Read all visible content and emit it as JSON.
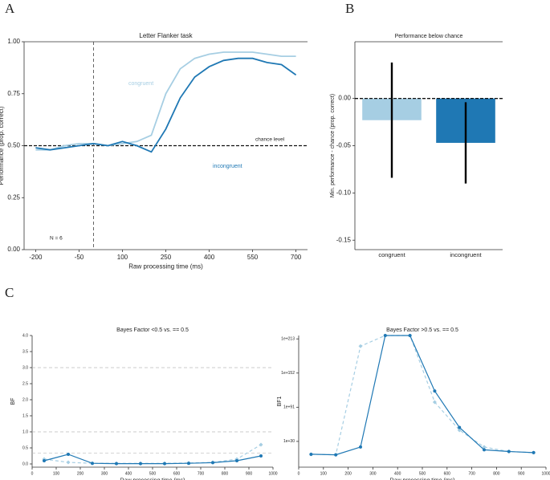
{
  "panel_labels": [
    "A",
    "B",
    "C"
  ],
  "chart_data": [
    {
      "type": "line",
      "title": "Letter Flanker task",
      "x_label": "Raw processing time (ms)",
      "y_label": "Performance (prop. correct)",
      "x": [
        -200,
        -150,
        -100,
        -50,
        0,
        50,
        100,
        150,
        200,
        250,
        300,
        350,
        400,
        450,
        500,
        550,
        600,
        650,
        700
      ],
      "series": [
        {
          "name": "congruent",
          "color": "#a6cee3",
          "values": [
            0.48,
            0.48,
            0.5,
            0.51,
            0.51,
            0.5,
            0.51,
            0.52,
            0.55,
            0.75,
            0.87,
            0.92,
            0.94,
            0.95,
            0.95,
            0.95,
            0.94,
            0.93,
            0.93
          ]
        },
        {
          "name": "incongruent",
          "color": "#1f78b4",
          "values": [
            0.49,
            0.48,
            0.49,
            0.5,
            0.51,
            0.5,
            0.52,
            0.5,
            0.47,
            0.58,
            0.73,
            0.83,
            0.88,
            0.91,
            0.92,
            0.92,
            0.9,
            0.89,
            0.84
          ]
        }
      ],
      "xlim": [
        -240,
        740
      ],
      "xticks": [
        -200,
        -50,
        100,
        250,
        400,
        550,
        700
      ],
      "ylim": [
        0,
        1
      ],
      "yticks": [
        {
          "value": 0,
          "label": "0.00"
        },
        {
          "value": 0.25,
          "label": "0.25"
        },
        {
          "value": 0.5,
          "label": "0.50"
        },
        {
          "value": 0.75,
          "label": "0.75"
        },
        {
          "value": 1,
          "label": "1.00"
        }
      ],
      "hlines": [
        0.5
      ],
      "vlines": [
        0
      ],
      "annotations": [
        "chance level",
        "N = 6"
      ]
    },
    {
      "type": "bar",
      "title": "Performance below chance",
      "y_label": "Min. performance - chance (prop. correct)",
      "categories": [
        "congruent",
        "incongruent"
      ],
      "values": [
        -0.023,
        -0.047
      ],
      "errors": [
        0.061,
        0.043
      ],
      "colors": [
        "#a6cee3",
        "#1f78b4"
      ],
      "ylim": [
        -0.16,
        0.06
      ],
      "yticks": [
        {
          "value": 0,
          "label": "0.00"
        },
        -0.05,
        {
          "value": -0.1,
          "label": "-0.10"
        },
        -0.15
      ],
      "hlines": [
        0
      ]
    },
    {
      "type": "line",
      "title": "Bayes Factor <0.5 vs. == 0.5",
      "x_label": "Raw processing time (ms)",
      "y_label": "BF",
      "x": [
        50,
        150,
        250,
        350,
        450,
        550,
        650,
        750,
        850,
        950
      ],
      "series": [
        {
          "color": "#a6cee3",
          "line_style": "dashed",
          "marker": "diamond",
          "values": [
            0.15,
            0.05,
            0.02,
            0.02,
            0.02,
            0.02,
            0.03,
            0.05,
            0.15,
            0.6
          ]
        },
        {
          "color": "#1f78b4",
          "line_style": "solid",
          "marker": "circle",
          "values": [
            0.1,
            0.3,
            0.02,
            0.01,
            0.01,
            0.01,
            0.02,
            0.04,
            0.1,
            0.25
          ]
        }
      ],
      "xlim": [
        0,
        1000
      ],
      "xticks": [
        0,
        100,
        200,
        300,
        400,
        500,
        600,
        700,
        800,
        900,
        1000
      ],
      "ylim": [
        -0.1,
        4
      ],
      "yticks": [
        {
          "value": 0,
          "label": "0.0"
        },
        0.5,
        {
          "value": 1,
          "label": "1.0"
        },
        1.5,
        {
          "value": 2,
          "label": "2.0"
        },
        2.5,
        {
          "value": 3,
          "label": "3.0"
        },
        3.5,
        {
          "value": 4,
          "label": "4.0"
        }
      ],
      "hlines": [
        0.333,
        1,
        3
      ]
    },
    {
      "type": "line",
      "title": "Bayes Factor >0.5 vs. == 0.5",
      "x_label": "Raw processing time (ms)",
      "y_label": "BF1",
      "log_y": true,
      "x": [
        50,
        150,
        250,
        350,
        450,
        550,
        650,
        750,
        850,
        950
      ],
      "series": [
        {
          "color": "#a6cee3",
          "line_style": "dashed",
          "marker": "diamond",
          "values": [
            10000000.0,
            1000000.0,
            1e+200,
            1e+219,
            1e+219,
            1e+100,
            1e+50,
            1e+20,
            1000000000000.0,
            10000000000.0
          ]
        },
        {
          "color": "#1f78b4",
          "line_style": "solid",
          "marker": "circle",
          "values": [
            10000000.0,
            1000000.0,
            1e+20,
            1e+219,
            1e+219,
            1e+120,
            1e+55,
            1000000000000000.0,
            1000000000000.0,
            10000000000.0
          ]
        }
      ],
      "xlim": [
        0,
        1000
      ],
      "xticks": [
        0,
        100,
        200,
        300,
        400,
        500,
        600,
        700,
        800,
        900,
        1000
      ],
      "ylim": [
        1e-16,
        1e+219
      ],
      "yticks": [
        1e+30,
        1e+91,
        1e+152,
        1e+213
      ]
    }
  ]
}
